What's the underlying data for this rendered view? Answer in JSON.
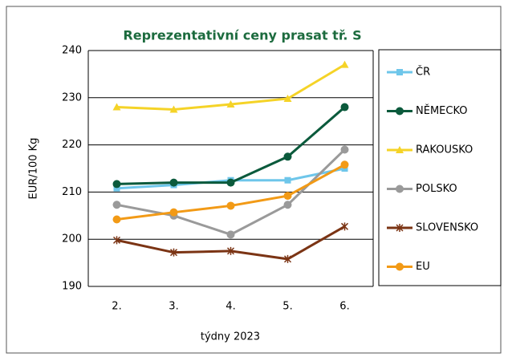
{
  "chart_data": {
    "type": "line",
    "title": "Reprezentativní  ceny prasat tř. S",
    "x_label": "týdny 2023",
    "y_label": "EUR/100 Kg",
    "categories": [
      "2.",
      "3.",
      "4.",
      "5.",
      "6."
    ],
    "ylim": [
      190,
      240
    ],
    "yticks": [
      190,
      200,
      210,
      220,
      230,
      240
    ],
    "grid": true,
    "legend": "right",
    "series": [
      {
        "name": "ČR",
        "color": "#6ec6ea",
        "marker": "square",
        "values": [
          210.8,
          211.5,
          212.5,
          212.5,
          215
        ]
      },
      {
        "name": "NĚMECKO",
        "color": "#0b5a3c",
        "marker": "circle",
        "values": [
          211.7,
          212,
          212,
          217.5,
          228
        ]
      },
      {
        "name": "RAKOUSKO",
        "color": "#f5d327",
        "marker": "triangle",
        "values": [
          228,
          227.5,
          228.6,
          229.8,
          237
        ]
      },
      {
        "name": "POLSKO",
        "color": "#9a9a9a",
        "marker": "circle",
        "values": [
          207.3,
          205,
          201,
          207.3,
          219
        ]
      },
      {
        "name": "SLOVENSKO",
        "color": "#7b3414",
        "marker": "star",
        "values": [
          199.8,
          197.2,
          197.5,
          195.8,
          202.7
        ]
      },
      {
        "name": "EU",
        "color": "#f29a16",
        "marker": "circle",
        "values": [
          204.2,
          205.7,
          207.1,
          209.2,
          215.8
        ]
      }
    ]
  }
}
